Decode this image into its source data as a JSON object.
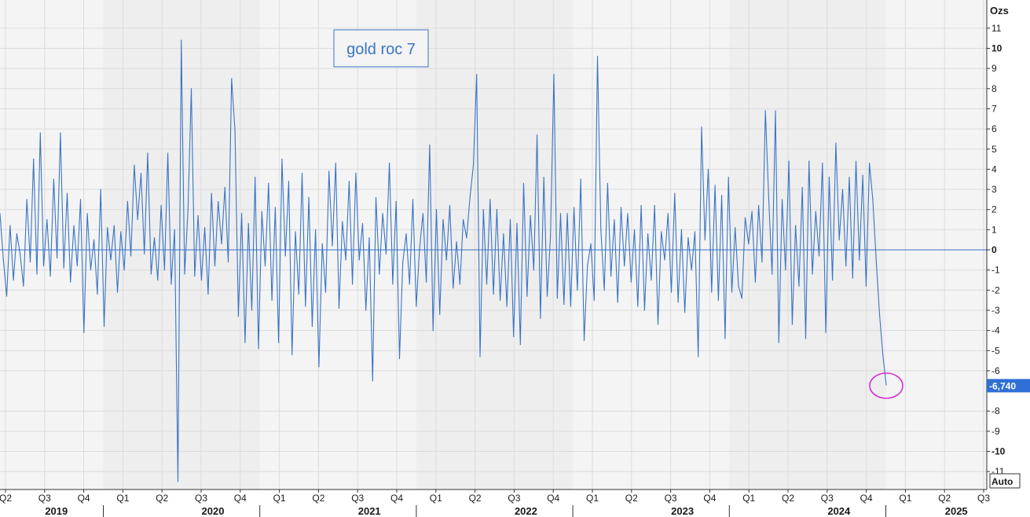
{
  "chart_data": {
    "type": "line",
    "title": "gold roc 7",
    "y_unit": "Ozs",
    "ylim": [
      -11.5,
      12
    ],
    "y_ticks": [
      11,
      10,
      9,
      8,
      7,
      6,
      5,
      4,
      3,
      2,
      1,
      0,
      -1,
      -2,
      -3,
      -4,
      -5,
      -6,
      -8,
      -9,
      -10,
      -11
    ],
    "y_ticks_bold": [
      10,
      0,
      -10
    ],
    "last_value_label": "-6,740",
    "last_value": -6.74,
    "scale_mode": "Auto",
    "x_quarter_labels": [
      "Q2",
      "Q3",
      "Q4",
      "Q1",
      "Q2",
      "Q3",
      "Q4",
      "Q1",
      "Q2",
      "Q3",
      "Q4",
      "Q1",
      "Q2",
      "Q3",
      "Q4",
      "Q1",
      "Q2",
      "Q3",
      "Q4",
      "Q1",
      "Q2",
      "Q3",
      "Q4",
      "Q1",
      "Q2",
      "Q3"
    ],
    "x_year_labels": [
      "2019",
      "2020",
      "2021",
      "2022",
      "2023",
      "2024",
      "2025"
    ],
    "grid": true,
    "zero_line": true,
    "annotation": "circle around last value",
    "colors": {
      "line": "#3a74c4",
      "annotation": "#d42fd4",
      "badge": "#2f6fd6",
      "grid": "#dcdcdc"
    },
    "series": [
      {
        "values": [
          1.8,
          -0.5,
          -2.3,
          1.2,
          -1.5,
          0.8,
          -0.2,
          -1.8,
          2.5,
          -0.6,
          4.5,
          -1.2,
          5.8,
          -0.8,
          1.5,
          -1.3,
          3.5,
          -0.4,
          5.8,
          -0.9,
          2.8,
          -1.6,
          1.2,
          -0.8,
          2.5,
          -4.1,
          1.8,
          -1.0,
          0.5,
          -2.2,
          3.0,
          -3.8,
          1.1,
          -0.5,
          1.2,
          -2.1,
          0.9,
          -1.0,
          2.4,
          -0.3,
          4.2,
          1.5,
          3.8,
          -0.2,
          4.8,
          -1.2,
          0.6,
          -1.5,
          2.2,
          -1.0,
          4.8,
          -1.7,
          1.0,
          -11.5,
          10.4,
          -1.2,
          2.0,
          8.0,
          -1.3,
          1.7,
          -1.5,
          1.1,
          -2.2,
          2.8,
          -0.8,
          2.4,
          0.3,
          3.1,
          -0.6,
          8.5,
          5.9,
          -3.3,
          1.8,
          -4.6,
          1.3,
          -3.0,
          3.6,
          -4.9,
          1.9,
          -0.8,
          3.3,
          -2.5,
          2.1,
          -4.6,
          4.5,
          -0.3,
          3.4,
          -5.2,
          0.9,
          -2.2,
          3.8,
          -2.8,
          2.6,
          -3.8,
          1.0,
          -5.8,
          0.3,
          -2.1,
          3.9,
          0.2,
          4.3,
          -2.9,
          1.4,
          -0.5,
          3.4,
          -1.7,
          3.8,
          -0.5,
          1.3,
          -3.0,
          0.6,
          -6.5,
          2.6,
          -1.2,
          1.8,
          -0.2,
          4.3,
          -1.7,
          2.4,
          -5.4,
          -0.6,
          0.8,
          -1.7,
          2.5,
          -2.8,
          0.1,
          1.8,
          -1.6,
          5.2,
          -4.0,
          2.0,
          -3.2,
          1.5,
          -0.5,
          2.2,
          -1.9,
          0.4,
          -1.7,
          1.5,
          0.6,
          2.6,
          4.2,
          8.7,
          -5.3,
          2.0,
          -1.7,
          2.5,
          -2.2,
          2.0,
          -2.5,
          0.8,
          -2.8,
          1.5,
          -4.3,
          1.3,
          -4.7,
          3.3,
          -2.3,
          1.7,
          -1.0,
          5.7,
          -3.4,
          3.6,
          -2.3,
          0.7,
          8.7,
          -2.4,
          1.8,
          -2.7,
          1.8,
          -2.8,
          2.1,
          -2.0,
          3.5,
          -4.5,
          -0.8,
          0.3,
          -2.5,
          9.6,
          1.0,
          -2.0,
          3.3,
          -1.3,
          1.5,
          -2.6,
          2.1,
          -0.8,
          1.8,
          -1.6,
          1.0,
          -2.8,
          2.2,
          -3.0,
          0.8,
          -1.5,
          2.2,
          -3.7,
          0.9,
          -0.5,
          1.8,
          -2.1,
          2.8,
          -2.6,
          1.0,
          -3.1,
          0.6,
          -1.0,
          0.9,
          -5.3,
          6.1,
          0.5,
          4.0,
          -2.1,
          3.2,
          -2.5,
          2.7,
          -4.4,
          3.6,
          -2.1,
          1.1,
          -1.8,
          -2.4,
          1.6,
          0.3,
          1.9,
          -1.6,
          2.2,
          -0.6,
          6.9,
          2.5,
          -1.2,
          6.9,
          -4.6,
          2.5,
          -1.0,
          4.4,
          -3.7,
          1.2,
          -1.8,
          3.1,
          -4.4,
          4.4,
          -1.2,
          1.9,
          -0.3,
          4.3,
          -4.1,
          3.6,
          -1.5,
          5.3,
          0.5,
          3.0,
          -0.8,
          3.6,
          -1.4,
          4.4,
          -0.5,
          3.7,
          -1.8,
          4.3,
          2.5,
          -0.5,
          -3.2,
          -5.2,
          -6.7
        ]
      }
    ]
  }
}
